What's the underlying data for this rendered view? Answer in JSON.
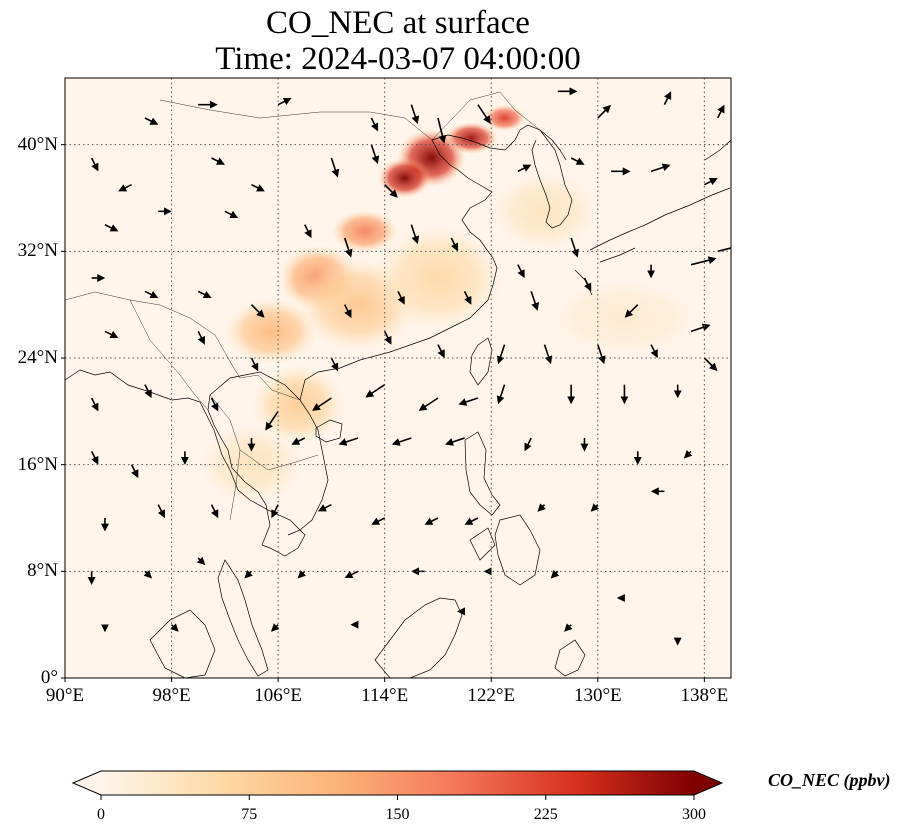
{
  "figure": {
    "title_line1": "CO_NEC at surface",
    "title_line2": "Time: 2024-03-07 04:00:00"
  },
  "map": {
    "projection": "PlateCarree",
    "extent": {
      "lon_min": 90,
      "lon_max": 140,
      "lat_min": 0,
      "lat_max": 45
    },
    "gridlines": "dotted",
    "lon_ticks": [
      {
        "value": 90,
        "label": "90°E"
      },
      {
        "value": 98,
        "label": "98°E"
      },
      {
        "value": 106,
        "label": "106°E"
      },
      {
        "value": 114,
        "label": "114°E"
      },
      {
        "value": 122,
        "label": "122°E"
      },
      {
        "value": 130,
        "label": "130°E"
      },
      {
        "value": 138,
        "label": "138°E"
      }
    ],
    "lat_ticks": [
      {
        "value": 0,
        "label": "0°"
      },
      {
        "value": 8,
        "label": "8°N"
      },
      {
        "value": 16,
        "label": "16°N"
      },
      {
        "value": 24,
        "label": "24°N"
      },
      {
        "value": 32,
        "label": "32°N"
      },
      {
        "value": 40,
        "label": "40°N"
      }
    ],
    "ocean_color": "#fff5eb",
    "coastline_color": "#000000"
  },
  "colorbar": {
    "label": "CO_NEC (ppbv)",
    "colormap": "OrRd",
    "min": 0,
    "max": 300,
    "extend": "both",
    "ticks": [
      {
        "value": 0,
        "label": "0"
      },
      {
        "value": 75,
        "label": "75"
      },
      {
        "value": 150,
        "label": "150"
      },
      {
        "value": 225,
        "label": "225"
      },
      {
        "value": 300,
        "label": "300"
      }
    ],
    "stops": [
      "#fff5eb",
      "#fdd9a6",
      "#fcb377",
      "#f4765a",
      "#d7301f",
      "#7f0000"
    ]
  },
  "concentration_field": [
    {
      "lon": 117.5,
      "lat": 39.0,
      "value": 300,
      "rx": 2.6,
      "ry": 2.2
    },
    {
      "lon": 115.5,
      "lat": 37.5,
      "value": 300,
      "rx": 2.0,
      "ry": 1.5
    },
    {
      "lon": 120.5,
      "lat": 40.5,
      "value": 280,
      "rx": 2.0,
      "ry": 1.2
    },
    {
      "lon": 123.0,
      "lat": 42.0,
      "value": 230,
      "rx": 1.6,
      "ry": 1.0
    },
    {
      "lon": 112.5,
      "lat": 33.5,
      "value": 170,
      "rx": 2.5,
      "ry": 1.6
    },
    {
      "lon": 109.0,
      "lat": 30.0,
      "value": 150,
      "rx": 3.0,
      "ry": 2.5
    },
    {
      "lon": 105.5,
      "lat": 26.0,
      "value": 110,
      "rx": 3.5,
      "ry": 2.5
    },
    {
      "lon": 112.0,
      "lat": 28.0,
      "value": 90,
      "rx": 4.5,
      "ry": 3.5
    },
    {
      "lon": 118.0,
      "lat": 30.0,
      "value": 60,
      "rx": 5.0,
      "ry": 4.0
    },
    {
      "lon": 107.5,
      "lat": 20.5,
      "value": 80,
      "rx": 3.5,
      "ry": 3.0
    },
    {
      "lon": 104.0,
      "lat": 16.0,
      "value": 40,
      "rx": 4.0,
      "ry": 3.0
    },
    {
      "lon": 126.0,
      "lat": 35.0,
      "value": 40,
      "rx": 4.0,
      "ry": 3.0
    },
    {
      "lon": 132.0,
      "lat": 27.0,
      "value": 25,
      "rx": 6.0,
      "ry": 3.0
    }
  ],
  "wind_arrows": [
    {
      "lon": 96,
      "lat": 42,
      "u": 2,
      "v": -1
    },
    {
      "lon": 100,
      "lat": 43,
      "u": 3,
      "v": 0
    },
    {
      "lon": 106,
      "lat": 43,
      "u": 2,
      "v": 1
    },
    {
      "lon": 113,
      "lat": 42,
      "u": 1,
      "v": -2
    },
    {
      "lon": 116,
      "lat": 43,
      "u": 1,
      "v": -3
    },
    {
      "lon": 118,
      "lat": 42,
      "u": 1,
      "v": -4
    },
    {
      "lon": 121,
      "lat": 43,
      "u": 2,
      "v": -3
    },
    {
      "lon": 127,
      "lat": 44,
      "u": 3,
      "v": 0
    },
    {
      "lon": 130,
      "lat": 42,
      "u": 2,
      "v": 2
    },
    {
      "lon": 135,
      "lat": 43,
      "u": 1,
      "v": 2
    },
    {
      "lon": 139,
      "lat": 42,
      "u": 1,
      "v": 2
    },
    {
      "lon": 92,
      "lat": 39,
      "u": 1,
      "v": -2
    },
    {
      "lon": 95,
      "lat": 37,
      "u": -2,
      "v": -1
    },
    {
      "lon": 101,
      "lat": 39,
      "u": 2,
      "v": -1
    },
    {
      "lon": 104,
      "lat": 37,
      "u": 2,
      "v": -1
    },
    {
      "lon": 110,
      "lat": 39,
      "u": 1,
      "v": -3
    },
    {
      "lon": 113,
      "lat": 40,
      "u": 1,
      "v": -3
    },
    {
      "lon": 114,
      "lat": 37,
      "u": 2,
      "v": -2
    },
    {
      "lon": 124,
      "lat": 38,
      "u": 2,
      "v": 1
    },
    {
      "lon": 128,
      "lat": 39,
      "u": 2,
      "v": -1
    },
    {
      "lon": 131,
      "lat": 38,
      "u": 3,
      "v": 0
    },
    {
      "lon": 134,
      "lat": 38,
      "u": 3,
      "v": 1
    },
    {
      "lon": 138,
      "lat": 37,
      "u": 2,
      "v": 1
    },
    {
      "lon": 93,
      "lat": 34,
      "u": 2,
      "v": -1
    },
    {
      "lon": 97,
      "lat": 35,
      "u": 2,
      "v": 0
    },
    {
      "lon": 102,
      "lat": 35,
      "u": 2,
      "v": -1
    },
    {
      "lon": 108,
      "lat": 34,
      "u": 1,
      "v": -2
    },
    {
      "lon": 111,
      "lat": 33,
      "u": 1,
      "v": -3
    },
    {
      "lon": 116,
      "lat": 34,
      "u": 1,
      "v": -3
    },
    {
      "lon": 119,
      "lat": 33,
      "u": 1,
      "v": -2
    },
    {
      "lon": 124,
      "lat": 31,
      "u": 1,
      "v": -2
    },
    {
      "lon": 128,
      "lat": 33,
      "u": 1,
      "v": -3
    },
    {
      "lon": 134,
      "lat": 31,
      "u": 0,
      "v": -2
    },
    {
      "lon": 137,
      "lat": 31,
      "u": 4,
      "v": 1
    },
    {
      "lon": 139,
      "lat": 32,
      "u": 4,
      "v": 1
    },
    {
      "lon": 92,
      "lat": 30,
      "u": 2,
      "v": 0
    },
    {
      "lon": 96,
      "lat": 29,
      "u": 2,
      "v": -1
    },
    {
      "lon": 100,
      "lat": 29,
      "u": 2,
      "v": -1
    },
    {
      "lon": 104,
      "lat": 28,
      "u": 2,
      "v": -2
    },
    {
      "lon": 111,
      "lat": 28,
      "u": 1,
      "v": -2
    },
    {
      "lon": 115,
      "lat": 29,
      "u": 1,
      "v": -2
    },
    {
      "lon": 120,
      "lat": 29,
      "u": 1,
      "v": -2
    },
    {
      "lon": 125,
      "lat": 29,
      "u": 1,
      "v": -3
    },
    {
      "lon": 129,
      "lat": 30,
      "u": 1,
      "v": -2
    },
    {
      "lon": 133,
      "lat": 28,
      "u": -2,
      "v": -2
    },
    {
      "lon": 137,
      "lat": 26,
      "u": 3,
      "v": 1
    },
    {
      "lon": 93,
      "lat": 26,
      "u": 2,
      "v": -1
    },
    {
      "lon": 100,
      "lat": 26,
      "u": 1,
      "v": -2
    },
    {
      "lon": 104,
      "lat": 24,
      "u": 1,
      "v": -2
    },
    {
      "lon": 110,
      "lat": 24,
      "u": 1,
      "v": -2
    },
    {
      "lon": 114,
      "lat": 26,
      "u": 1,
      "v": -2
    },
    {
      "lon": 118,
      "lat": 25,
      "u": 1,
      "v": -2
    },
    {
      "lon": 123,
      "lat": 25,
      "u": -1,
      "v": -3
    },
    {
      "lon": 126,
      "lat": 25,
      "u": 1,
      "v": -3
    },
    {
      "lon": 130,
      "lat": 25,
      "u": 1,
      "v": -3
    },
    {
      "lon": 134,
      "lat": 25,
      "u": 1,
      "v": -2
    },
    {
      "lon": 138,
      "lat": 24,
      "u": 2,
      "v": -2
    },
    {
      "lon": 92,
      "lat": 21,
      "u": 1,
      "v": -2
    },
    {
      "lon": 96,
      "lat": 22,
      "u": 1,
      "v": -2
    },
    {
      "lon": 101,
      "lat": 21,
      "u": 1,
      "v": -2
    },
    {
      "lon": 106,
      "lat": 20,
      "u": -2,
      "v": -3
    },
    {
      "lon": 110,
      "lat": 21,
      "u": -3,
      "v": -2
    },
    {
      "lon": 114,
      "lat": 22,
      "u": -3,
      "v": -2
    },
    {
      "lon": 118,
      "lat": 21,
      "u": -3,
      "v": -2
    },
    {
      "lon": 121,
      "lat": 21,
      "u": -3,
      "v": -1
    },
    {
      "lon": 123,
      "lat": 22,
      "u": -1,
      "v": -3
    },
    {
      "lon": 128,
      "lat": 22,
      "u": 0,
      "v": -3
    },
    {
      "lon": 132,
      "lat": 22,
      "u": 0,
      "v": -3
    },
    {
      "lon": 136,
      "lat": 22,
      "u": 0,
      "v": -2
    },
    {
      "lon": 92,
      "lat": 17,
      "u": 1,
      "v": -2
    },
    {
      "lon": 95,
      "lat": 16,
      "u": 1,
      "v": -2
    },
    {
      "lon": 99,
      "lat": 17,
      "u": 0,
      "v": -2
    },
    {
      "lon": 104,
      "lat": 18,
      "u": 0,
      "v": -2
    },
    {
      "lon": 108,
      "lat": 18,
      "u": -2,
      "v": -1
    },
    {
      "lon": 112,
      "lat": 18,
      "u": -3,
      "v": -1
    },
    {
      "lon": 116,
      "lat": 18,
      "u": -3,
      "v": -1
    },
    {
      "lon": 120,
      "lat": 18,
      "u": -3,
      "v": -1
    },
    {
      "lon": 125,
      "lat": 18,
      "u": -1,
      "v": -2
    },
    {
      "lon": 129,
      "lat": 18,
      "u": 0,
      "v": -2
    },
    {
      "lon": 133,
      "lat": 17,
      "u": 0,
      "v": -2
    },
    {
      "lon": 137,
      "lat": 17,
      "u": -1,
      "v": -1
    },
    {
      "lon": 93,
      "lat": 12,
      "u": 0,
      "v": -2
    },
    {
      "lon": 97,
      "lat": 13,
      "u": 1,
      "v": -2
    },
    {
      "lon": 101,
      "lat": 13,
      "u": 1,
      "v": -2
    },
    {
      "lon": 106,
      "lat": 13,
      "u": -1,
      "v": -2
    },
    {
      "lon": 110,
      "lat": 13,
      "u": -2,
      "v": -1
    },
    {
      "lon": 114,
      "lat": 12,
      "u": -2,
      "v": -1
    },
    {
      "lon": 118,
      "lat": 12,
      "u": -2,
      "v": -1
    },
    {
      "lon": 121,
      "lat": 12,
      "u": -2,
      "v": -1
    },
    {
      "lon": 126,
      "lat": 13,
      "u": -1,
      "v": -1
    },
    {
      "lon": 130,
      "lat": 13,
      "u": -1,
      "v": -1
    },
    {
      "lon": 135,
      "lat": 14,
      "u": -2,
      "v": 0
    },
    {
      "lon": 92,
      "lat": 8,
      "u": 0,
      "v": -2
    },
    {
      "lon": 96,
      "lat": 8,
      "u": 1,
      "v": -1
    },
    {
      "lon": 100,
      "lat": 9,
      "u": 1,
      "v": -1
    },
    {
      "lon": 104,
      "lat": 8,
      "u": -1,
      "v": -1
    },
    {
      "lon": 108,
      "lat": 8,
      "u": -1,
      "v": -1
    },
    {
      "lon": 112,
      "lat": 8,
      "u": -2,
      "v": -1
    },
    {
      "lon": 117,
      "lat": 8,
      "u": -2,
      "v": 0
    },
    {
      "lon": 122,
      "lat": 8,
      "u": -1,
      "v": 0
    },
    {
      "lon": 127,
      "lat": 8,
      "u": -1,
      "v": -1
    },
    {
      "lon": 93,
      "lat": 4,
      "u": 0,
      "v": -1
    },
    {
      "lon": 98,
      "lat": 4,
      "u": 1,
      "v": -1
    },
    {
      "lon": 106,
      "lat": 4,
      "u": -1,
      "v": -1
    },
    {
      "lon": 112,
      "lat": 4,
      "u": -1,
      "v": 0
    },
    {
      "lon": 120,
      "lat": 5,
      "u": -1,
      "v": 0
    },
    {
      "lon": 128,
      "lat": 4,
      "u": -1,
      "v": -1
    },
    {
      "lon": 132,
      "lat": 6,
      "u": -1,
      "v": 0
    },
    {
      "lon": 136,
      "lat": 3,
      "u": 0,
      "v": -1
    }
  ]
}
